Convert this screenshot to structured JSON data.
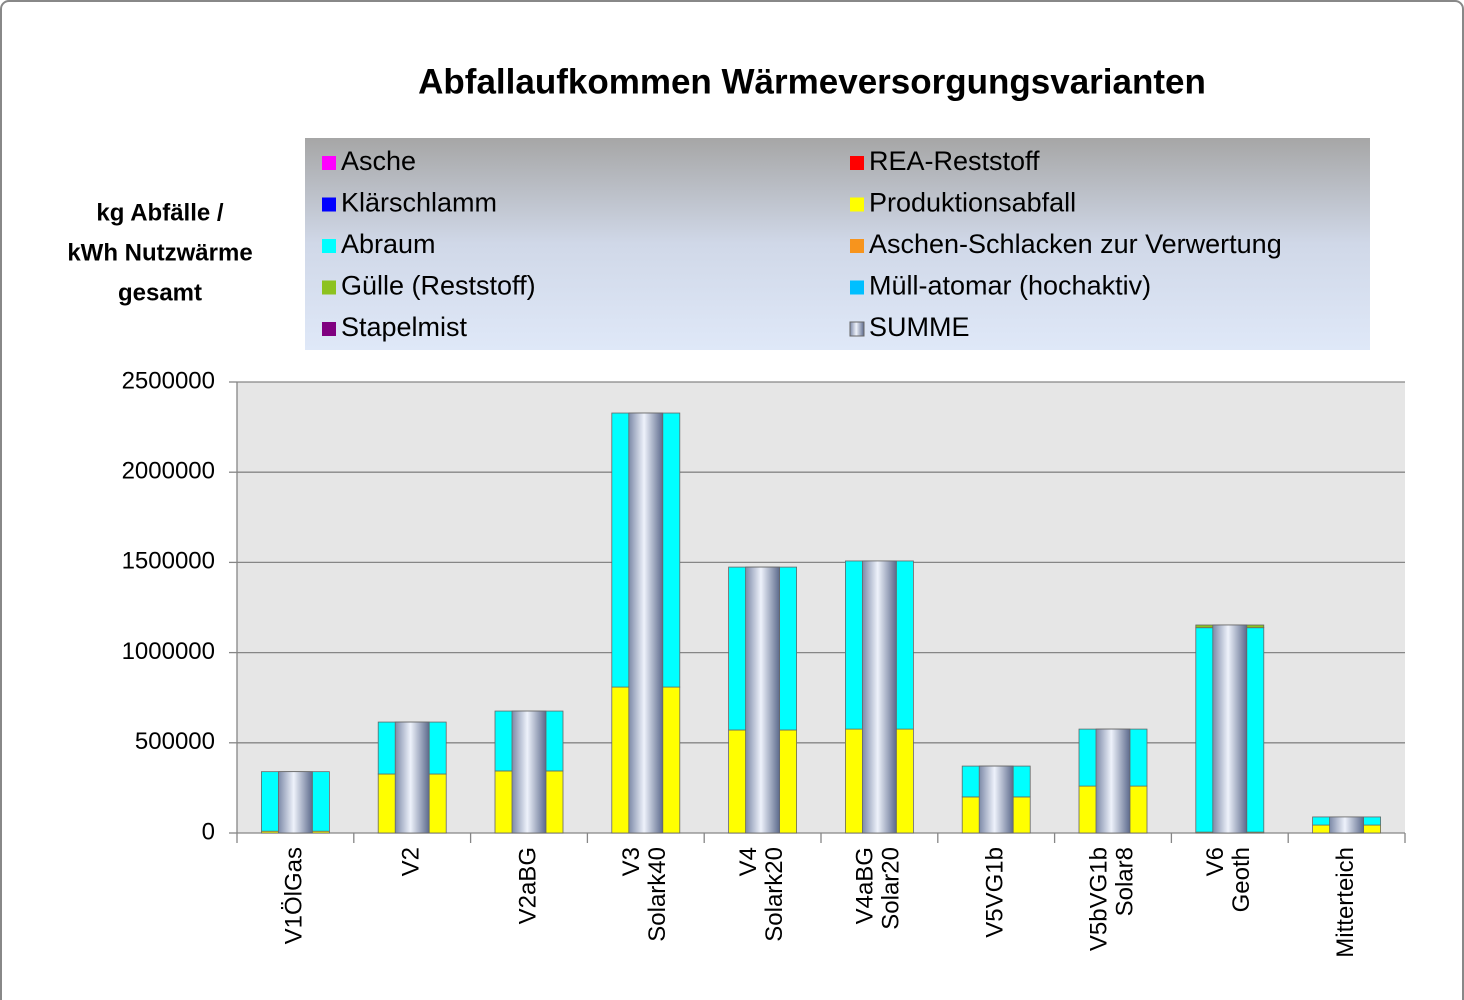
{
  "chart_data": {
    "type": "stacked_bar",
    "title": "Abfallaufkommen Wärmeversorgungsvarianten",
    "y_label": [
      "kg Abfälle /",
      "kWh Nutzwärme",
      "gesamt"
    ],
    "categories": [
      [
        "V1ÖlGas"
      ],
      [
        "V2"
      ],
      [
        "V2aBG"
      ],
      [
        "V3",
        "Solark40"
      ],
      [
        "V4",
        "Solark20"
      ],
      [
        "V4aBG",
        "Solar20"
      ],
      [
        "V5VG1b"
      ],
      [
        "V5bVG1b",
        "Solar8"
      ],
      [
        "V6",
        "Geoth"
      ],
      [
        "Mitterteich"
      ]
    ],
    "series": [
      {
        "name": "Asche",
        "color": "#ff00ff",
        "values": [
          0,
          0,
          0,
          0,
          0,
          0,
          0,
          0,
          0,
          0
        ]
      },
      {
        "name": "REA-Reststoff",
        "color": "#ff0000",
        "values": [
          0,
          0,
          0,
          0,
          0,
          0,
          0,
          0,
          0,
          0
        ]
      },
      {
        "name": "Klärschlamm",
        "color": "#0000ff",
        "values": [
          0,
          0,
          0,
          0,
          0,
          0,
          0,
          0,
          0,
          0
        ]
      },
      {
        "name": "Produktionsabfall",
        "color": "#ffff00",
        "values": [
          10000,
          327000,
          344000,
          809000,
          571000,
          576000,
          200000,
          260000,
          5000,
          44000
        ]
      },
      {
        "name": "Abraum",
        "color": "#00ffff",
        "values": [
          330000,
          288000,
          332000,
          1519000,
          903000,
          932000,
          171000,
          316000,
          1133000,
          45000
        ]
      },
      {
        "name": "Aschen-Schlacken zur Verwertung",
        "color": "#f7941d",
        "values": [
          0,
          0,
          0,
          0,
          0,
          0,
          0,
          0,
          0,
          0
        ]
      },
      {
        "name": "Gülle (Reststoff)",
        "color": "#8dc21f",
        "values": [
          0,
          0,
          0,
          0,
          0,
          0,
          0,
          0,
          15000,
          0
        ]
      },
      {
        "name": "Müll-atomar (hochaktiv)",
        "color": "#00bfff",
        "values": [
          0,
          0,
          0,
          0,
          0,
          0,
          0,
          0,
          0,
          0
        ]
      },
      {
        "name": "Stapelmist",
        "color": "#800080",
        "values": [
          0,
          0,
          0,
          0,
          0,
          0,
          0,
          0,
          0,
          0
        ]
      }
    ],
    "total_series": {
      "name": "SUMME",
      "values": [
        340000,
        615000,
        676000,
        2328000,
        1474000,
        1508000,
        371000,
        576000,
        1153000,
        89000
      ]
    },
    "ylim": [
      0,
      2500000
    ],
    "yticks": [
      0,
      500000,
      1000000,
      1500000,
      2000000,
      2500000
    ],
    "grid": true,
    "legend": "top"
  }
}
